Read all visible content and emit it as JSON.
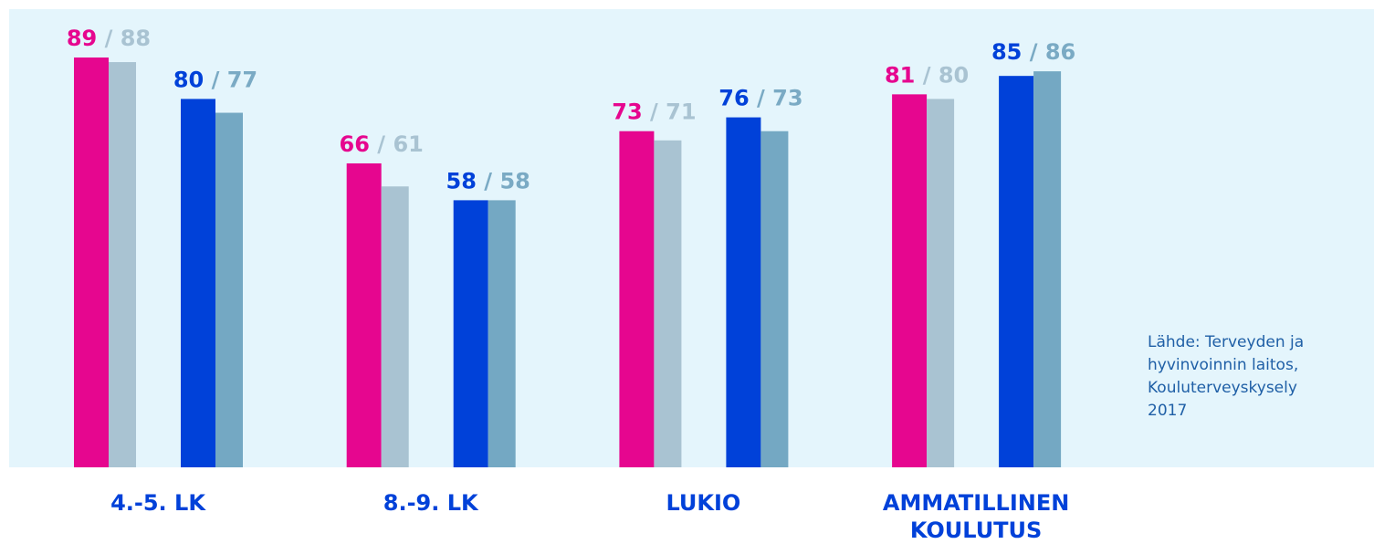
{
  "chart_data": {
    "type": "bar",
    "categories": [
      "4.-5. LK",
      "8.-9. LK",
      "LUKIO",
      "AMMATILLINEN KOULUTUS"
    ],
    "series": [
      {
        "color": "#e6068f",
        "values": [
          89,
          66,
          73,
          81
        ]
      },
      {
        "color": "#a9c3d2",
        "values": [
          88,
          61,
          71,
          80
        ]
      },
      {
        "color": "#0041d9",
        "values": [
          80,
          58,
          76,
          85
        ]
      },
      {
        "color": "#74a8c3",
        "values": [
          77,
          58,
          73,
          86
        ]
      }
    ],
    "ylim": [
      0,
      100
    ],
    "source": [
      "Lähde: Terveyden ja",
      "hyvinvoinnin laitos,",
      "Kouluterveyskysely",
      "2017"
    ]
  }
}
